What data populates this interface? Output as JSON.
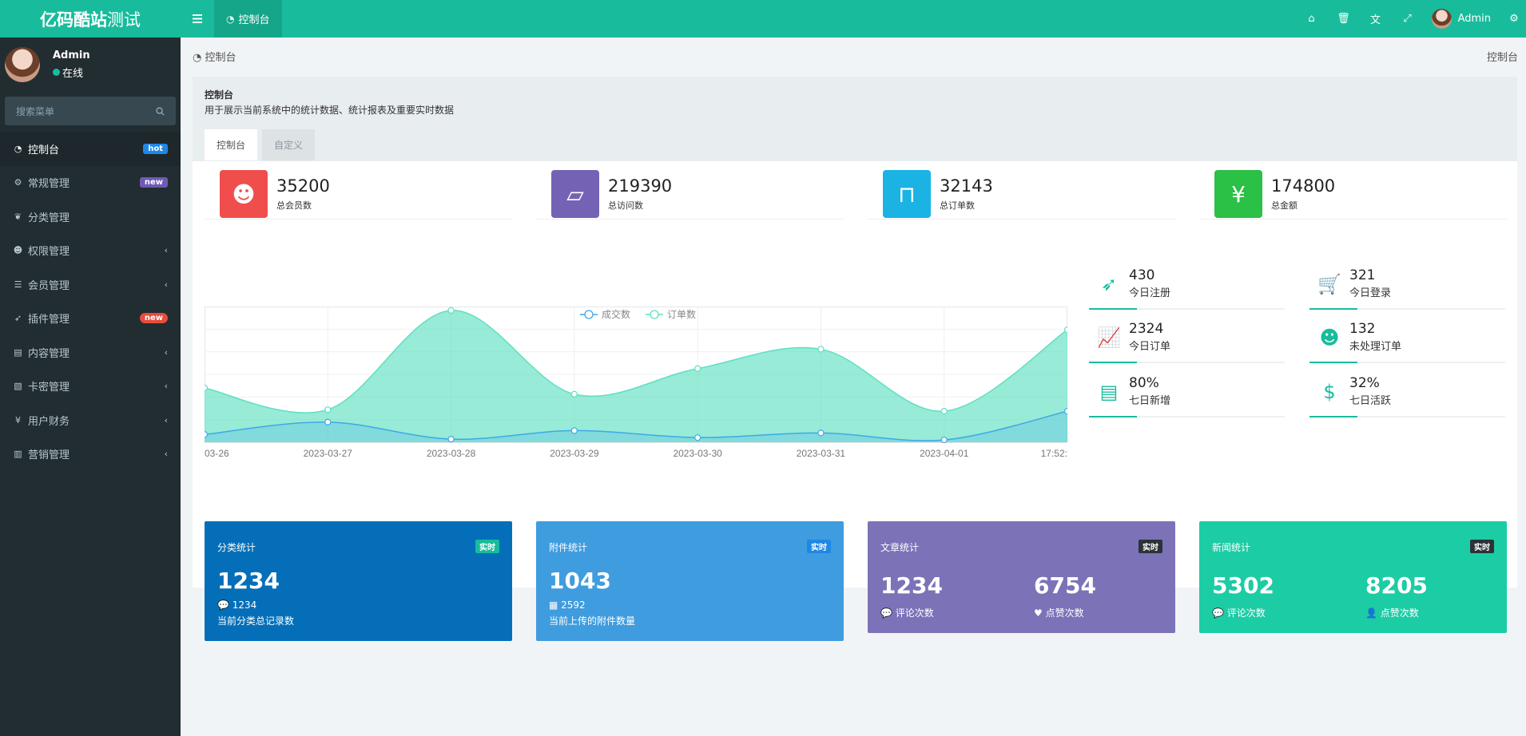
{
  "brand": {
    "bold": "亿码酷站",
    "light": "测试"
  },
  "user": {
    "name": "Admin",
    "status": "在线"
  },
  "search": {
    "placeholder": "搜索菜单"
  },
  "menu": [
    {
      "label": "控制台",
      "icon": "dashboard-icon",
      "badge": "hot"
    },
    {
      "label": "常规管理",
      "icon": "cogs-icon",
      "badge": "new"
    },
    {
      "label": "分类管理",
      "icon": "leaf-icon"
    },
    {
      "label": "权限管理",
      "icon": "group-icon",
      "chevron": true
    },
    {
      "label": "会员管理",
      "icon": "list-icon",
      "chevron": true
    },
    {
      "label": "插件管理",
      "icon": "rocket-icon",
      "badge": "new"
    },
    {
      "label": "内容管理",
      "icon": "file-icon",
      "chevron": true
    },
    {
      "label": "卡密管理",
      "icon": "image-icon",
      "chevron": true
    },
    {
      "label": "用户财务",
      "icon": "yen-icon",
      "chevron": true
    },
    {
      "label": "营销管理",
      "icon": "bar-chart-icon",
      "chevron": true
    }
  ],
  "topbar": {
    "nav_tab": "控制台",
    "user": "Admin",
    "icons": [
      "home-icon",
      "trash-icon",
      "translate-icon",
      "fullscreen-icon",
      "settings-icon"
    ]
  },
  "breadcrumb": {
    "left": "控制台",
    "right": "控制台"
  },
  "panel": {
    "title": "控制台",
    "desc": "用于展示当前系统中的统计数据、统计报表及重要实时数据",
    "tabs": [
      "控制台",
      "自定义"
    ]
  },
  "stats": [
    {
      "value": "35200",
      "label": "总会员数",
      "color": "#ef4e4c",
      "icon": "users-icon"
    },
    {
      "value": "219390",
      "label": "总访问数",
      "color": "#7463b5",
      "icon": "book-icon"
    },
    {
      "value": "32143",
      "label": "总订单数",
      "color": "#1ab3e4",
      "icon": "shopping-bag-icon"
    },
    {
      "value": "174800",
      "label": "总金额",
      "color": "#2bc046",
      "icon": "yen-icon"
    }
  ],
  "mini_stats": [
    {
      "value": "430",
      "label": "今日注册",
      "icon": "rocket-icon"
    },
    {
      "value": "321",
      "label": "今日登录",
      "icon": "cart-icon"
    },
    {
      "value": "2324",
      "label": "今日订单",
      "icon": "line-chart-icon"
    },
    {
      "value": "132",
      "label": "未处理订单",
      "icon": "users-icon"
    },
    {
      "value": "80%",
      "label": "七日新增",
      "icon": "list-alt-icon"
    },
    {
      "value": "32%",
      "label": "七日活跃",
      "icon": "dollar-icon"
    }
  ],
  "cards": [
    {
      "title": "分类统计",
      "badge": "实时",
      "value": "1234",
      "sub_value": "1234",
      "sub_label": "当前分类总记录数",
      "color": "#046fb8",
      "badge_color": "#18bc9c"
    },
    {
      "title": "附件统计",
      "badge": "实时",
      "value": "1043",
      "sub_value": "2592",
      "sub_label": "当前上传的附件数量",
      "color": "#3f9cdf",
      "badge_color": "#1e88e5"
    },
    {
      "title": "文章统计",
      "badge": "实时",
      "value": "1234",
      "value2": "6754",
      "label1": "评论次数",
      "label2": "点赞次数",
      "color": "#7b72b8",
      "badge_color": "#2c3338"
    },
    {
      "title": "新闻统计",
      "badge": "实时",
      "value": "5302",
      "value2": "8205",
      "label1": "评论次数",
      "label2": "点赞次数",
      "color": "#1ccca5",
      "badge_color": "#2c3338"
    }
  ],
  "chart_data": {
    "type": "area",
    "x": [
      "03-26",
      "2023-03-27",
      "2023-03-28",
      "2023-03-29",
      "2023-03-30",
      "2023-03-31",
      "2023-04-01",
      "17:52:"
    ],
    "series": [
      {
        "name": "成交数",
        "values": [
          10,
          26,
          4,
          15,
          6,
          12,
          3,
          40
        ],
        "color": "#3fa8e6"
      },
      {
        "name": "订单数",
        "values": [
          70,
          42,
          170,
          62,
          95,
          120,
          40,
          145
        ],
        "color": "#5fe0c2"
      }
    ],
    "ylim": [
      0,
      175
    ],
    "grid": true,
    "legend": "top-center"
  }
}
